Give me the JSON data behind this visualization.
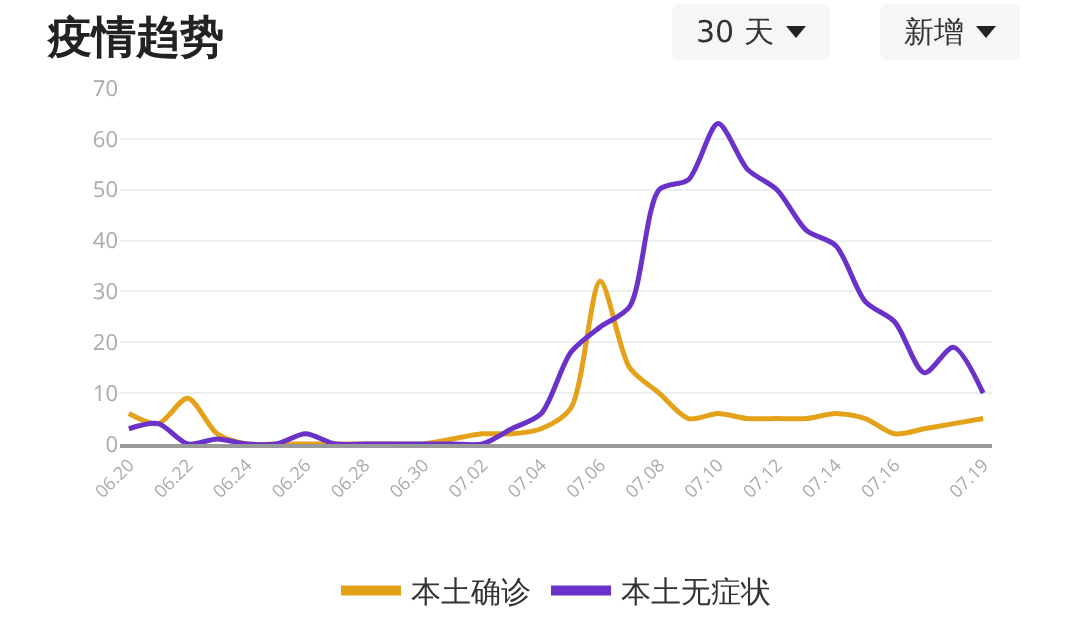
{
  "chart_data": {
    "type": "line",
    "title": "疫情趋势",
    "annotations": [
      "30 天",
      "新增"
    ],
    "categories": [
      "06.20",
      null,
      "06.22",
      null,
      "06.24",
      null,
      "06.26",
      null,
      "06.28",
      null,
      "06.30",
      null,
      "07.02",
      null,
      "07.04",
      null,
      "07.06",
      null,
      "07.08",
      null,
      "07.10",
      null,
      "07.12",
      null,
      "07.14",
      null,
      "07.16",
      null,
      null,
      "07.19"
    ],
    "series": [
      {
        "name": "本土确诊",
        "color": "#e3a21a",
        "values": [
          6,
          4,
          9,
          2,
          0,
          0,
          0,
          0,
          0,
          0,
          0,
          1,
          2,
          2,
          3,
          7,
          32,
          15,
          10,
          5,
          6,
          5,
          5,
          5,
          6,
          5,
          2,
          3,
          4,
          5
        ]
      },
      {
        "name": "本土无症状",
        "color": "#6a32c9",
        "values": [
          3,
          4,
          0,
          1,
          0,
          0,
          2,
          0,
          0,
          0,
          0,
          0,
          0,
          3,
          6,
          18,
          23,
          27,
          50,
          52,
          63,
          54,
          50,
          42,
          39,
          28,
          24,
          14,
          19,
          10
        ]
      }
    ],
    "ylim": [
      0,
      70
    ],
    "yticks": [
      0,
      10,
      20,
      30,
      40,
      50,
      60,
      70
    ],
    "grid": "y",
    "legend": "bottom",
    "marker": "none",
    "line_style": "solid"
  }
}
